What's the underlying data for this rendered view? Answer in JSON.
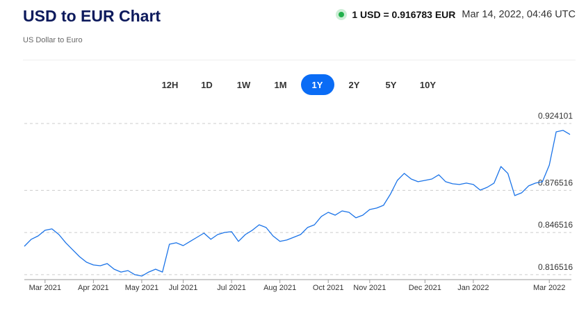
{
  "header": {
    "title": "USD to EUR Chart",
    "subtitle": "US Dollar to Euro",
    "rate": "1 USD = 0.916783 EUR",
    "timestamp": "Mar 14, 2022, 04:46 UTC"
  },
  "ranges": [
    {
      "label": "12H"
    },
    {
      "label": "1D"
    },
    {
      "label": "1W"
    },
    {
      "label": "1M"
    },
    {
      "label": "1Y",
      "active": true
    },
    {
      "label": "2Y"
    },
    {
      "label": "5Y"
    },
    {
      "label": "10Y"
    }
  ],
  "chart_data": {
    "type": "line",
    "categories": [
      null,
      null,
      null,
      "Mar 2021",
      null,
      null,
      null,
      null,
      null,
      null,
      "Apr 2021",
      null,
      null,
      null,
      null,
      null,
      null,
      "May 2021",
      null,
      null,
      null,
      null,
      null,
      "Jul 2021",
      null,
      null,
      null,
      null,
      null,
      null,
      "Jul 2021",
      null,
      null,
      null,
      null,
      null,
      null,
      "Aug 2021",
      null,
      null,
      null,
      null,
      null,
      null,
      "Oct 2021",
      null,
      null,
      null,
      null,
      null,
      "Nov 2021",
      null,
      null,
      null,
      null,
      null,
      null,
      null,
      "Dec 2021",
      null,
      null,
      null,
      null,
      null,
      null,
      "Jan 2022",
      null,
      null,
      null,
      null,
      null,
      null,
      null,
      null,
      null,
      null,
      "Mar 2022",
      null,
      null,
      null
    ],
    "series": [
      {
        "name": "USD/EUR",
        "color": "#1a73e8",
        "values": [
          0.8367,
          0.8417,
          0.8441,
          0.8481,
          0.8491,
          0.8451,
          0.8392,
          0.8342,
          0.8293,
          0.8254,
          0.8234,
          0.8229,
          0.8244,
          0.8204,
          0.8184,
          0.8194,
          0.8165,
          0.8155,
          0.8184,
          0.8204,
          0.8184,
          0.8382,
          0.8392,
          0.8372,
          0.8402,
          0.8431,
          0.8461,
          0.8417,
          0.8451,
          0.8466,
          0.8471,
          0.8402,
          0.8451,
          0.8481,
          0.852,
          0.8501,
          0.8441,
          0.8402,
          0.8412,
          0.8431,
          0.8451,
          0.8501,
          0.852,
          0.858,
          0.8609,
          0.8589,
          0.8619,
          0.8609,
          0.857,
          0.8589,
          0.8629,
          0.8639,
          0.8659,
          0.8738,
          0.8836,
          0.8886,
          0.8846,
          0.8827,
          0.8836,
          0.8846,
          0.8876,
          0.8827,
          0.8812,
          0.8807,
          0.8817,
          0.8807,
          0.8767,
          0.8787,
          0.8817,
          0.8935,
          0.8886,
          0.8728,
          0.8748,
          0.8797,
          0.8817,
          0.8827,
          0.8945,
          0.9182,
          0.9192,
          0.9163
        ]
      }
    ],
    "ylim": [
      0.813,
      0.933
    ],
    "yticks": [
      0.816516,
      0.846516,
      0.876516,
      0.924101
    ],
    "grid": true
  }
}
